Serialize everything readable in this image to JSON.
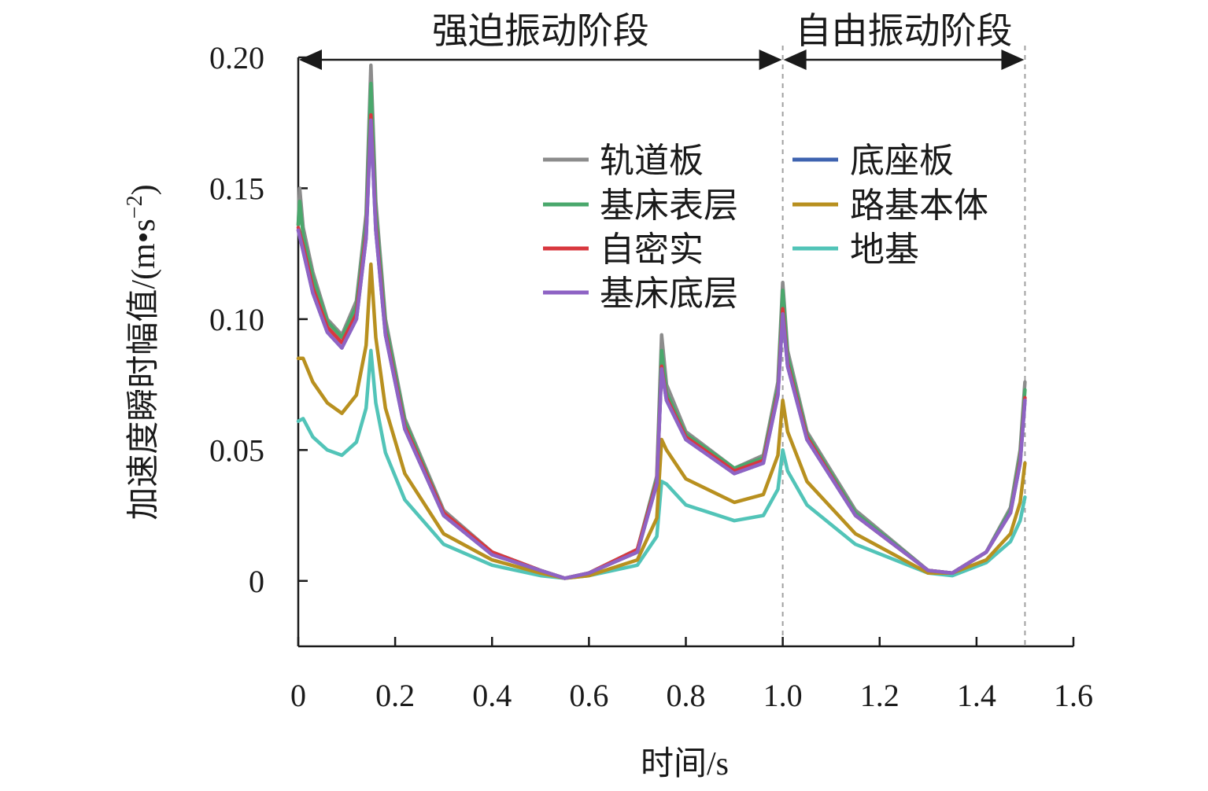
{
  "chart_data": {
    "type": "line",
    "title": "",
    "xlabel": "时间/s",
    "ylabel_main": "加速度瞬时幅值/(m",
    "ylabel_dot": "•",
    "ylabel_s": "s",
    "ylabel_exp": "−2",
    "ylabel_close": ")",
    "xlim": [
      0,
      1.6
    ],
    "ylim": [
      -0.025,
      0.2
    ],
    "x_ticks": [
      {
        "value": 0,
        "label": "0"
      },
      {
        "value": 0.2,
        "label": "0.2"
      },
      {
        "value": 0.4,
        "label": "0.4"
      },
      {
        "value": 0.6,
        "label": "0.6"
      },
      {
        "value": 0.8,
        "label": "0.8"
      },
      {
        "value": 1.0,
        "label": "1.0"
      },
      {
        "value": 1.2,
        "label": "1.2"
      },
      {
        "value": 1.4,
        "label": "1.4"
      },
      {
        "value": 1.6,
        "label": "1.6"
      }
    ],
    "y_ticks": [
      {
        "value": 0,
        "label": "0"
      },
      {
        "value": 0.05,
        "label": "0.05"
      },
      {
        "value": 0.1,
        "label": "0.10"
      },
      {
        "value": 0.15,
        "label": "0.15"
      },
      {
        "value": 0.2,
        "label": "0.20"
      }
    ],
    "grid": false,
    "legend_position": "upper-right, two columns",
    "phases": [
      {
        "label": "强迫振动阶段",
        "x_start": 0,
        "x_end": 1.0
      },
      {
        "label": "自由振动阶段",
        "x_start": 1.0,
        "x_end": 1.5
      }
    ],
    "dividers": [
      1.0,
      1.5
    ],
    "series": [
      {
        "name": "轨道板",
        "color": "#8c8c8c",
        "x": [
          0,
          0.003,
          0.01,
          0.03,
          0.06,
          0.09,
          0.12,
          0.14,
          0.15,
          0.16,
          0.18,
          0.22,
          0.3,
          0.4,
          0.5,
          0.55,
          0.6,
          0.7,
          0.74,
          0.75,
          0.76,
          0.8,
          0.9,
          0.96,
          0.99,
          1.0,
          1.01,
          1.05,
          1.15,
          1.3,
          1.35,
          1.42,
          1.47,
          1.49,
          1.5
        ],
        "y": [
          0.136,
          0.15,
          0.135,
          0.118,
          0.1,
          0.094,
          0.107,
          0.14,
          0.197,
          0.145,
          0.1,
          0.062,
          0.027,
          0.011,
          0.004,
          0.001,
          0.003,
          0.012,
          0.04,
          0.094,
          0.075,
          0.057,
          0.043,
          0.048,
          0.076,
          0.114,
          0.088,
          0.057,
          0.027,
          0.004,
          0.003,
          0.011,
          0.028,
          0.05,
          0.076
        ]
      },
      {
        "name": "基床表层",
        "color": "#4aa86c",
        "x": [
          0,
          0.003,
          0.01,
          0.03,
          0.06,
          0.09,
          0.12,
          0.14,
          0.15,
          0.16,
          0.18,
          0.22,
          0.3,
          0.4,
          0.5,
          0.55,
          0.6,
          0.7,
          0.74,
          0.75,
          0.76,
          0.8,
          0.9,
          0.96,
          0.99,
          1.0,
          1.01,
          1.05,
          1.15,
          1.3,
          1.35,
          1.42,
          1.47,
          1.49,
          1.5
        ],
        "y": [
          0.136,
          0.145,
          0.132,
          0.116,
          0.099,
          0.093,
          0.105,
          0.137,
          0.19,
          0.141,
          0.098,
          0.061,
          0.026,
          0.011,
          0.004,
          0.001,
          0.003,
          0.012,
          0.039,
          0.088,
          0.072,
          0.056,
          0.043,
          0.047,
          0.074,
          0.111,
          0.086,
          0.056,
          0.026,
          0.004,
          0.003,
          0.011,
          0.027,
          0.048,
          0.073
        ]
      },
      {
        "name": "自密实",
        "color": "#d8383f",
        "x": [
          0,
          0.01,
          0.03,
          0.06,
          0.09,
          0.12,
          0.14,
          0.15,
          0.16,
          0.18,
          0.22,
          0.3,
          0.4,
          0.5,
          0.55,
          0.6,
          0.7,
          0.74,
          0.75,
          0.76,
          0.8,
          0.9,
          0.96,
          0.99,
          1.0,
          1.01,
          1.05,
          1.15,
          1.3,
          1.35,
          1.42,
          1.47,
          1.49,
          1.5
        ],
        "y": [
          0.135,
          0.128,
          0.112,
          0.097,
          0.091,
          0.102,
          0.133,
          0.178,
          0.136,
          0.095,
          0.059,
          0.026,
          0.011,
          0.004,
          0.001,
          0.003,
          0.012,
          0.038,
          0.082,
          0.07,
          0.055,
          0.042,
          0.046,
          0.072,
          0.104,
          0.083,
          0.055,
          0.025,
          0.004,
          0.003,
          0.011,
          0.026,
          0.046,
          0.07
        ]
      },
      {
        "name": "基床底层",
        "color": "#8e63c4",
        "x": [
          0,
          0.01,
          0.03,
          0.06,
          0.09,
          0.12,
          0.14,
          0.15,
          0.16,
          0.18,
          0.22,
          0.3,
          0.4,
          0.5,
          0.55,
          0.6,
          0.7,
          0.74,
          0.75,
          0.76,
          0.8,
          0.9,
          0.96,
          0.99,
          1.0,
          1.01,
          1.05,
          1.15,
          1.3,
          1.35,
          1.42,
          1.47,
          1.49,
          1.5
        ],
        "y": [
          0.134,
          0.126,
          0.11,
          0.095,
          0.089,
          0.1,
          0.131,
          0.176,
          0.134,
          0.094,
          0.058,
          0.025,
          0.01,
          0.004,
          0.001,
          0.003,
          0.011,
          0.037,
          0.081,
          0.069,
          0.054,
          0.041,
          0.045,
          0.071,
          0.102,
          0.082,
          0.054,
          0.025,
          0.004,
          0.003,
          0.011,
          0.026,
          0.045,
          0.069
        ]
      },
      {
        "name": "底座板",
        "color": "#3e63b0",
        "x": [
          0,
          0.01,
          0.03,
          0.06,
          0.09,
          0.12,
          0.14,
          0.15,
          0.16,
          0.18,
          0.22,
          0.3,
          0.4,
          0.5,
          0.55,
          0.6,
          0.7,
          0.74,
          0.75,
          0.76,
          0.8,
          0.9,
          0.96,
          0.99,
          1.0,
          1.01,
          1.05,
          1.15,
          1.3,
          1.35,
          1.42,
          1.47,
          1.49,
          1.5
        ],
        "y": [
          0.134,
          0.126,
          0.11,
          0.095,
          0.089,
          0.1,
          0.131,
          0.176,
          0.134,
          0.094,
          0.058,
          0.025,
          0.01,
          0.004,
          0.001,
          0.003,
          0.011,
          0.037,
          0.081,
          0.069,
          0.054,
          0.041,
          0.045,
          0.071,
          0.102,
          0.082,
          0.054,
          0.025,
          0.004,
          0.003,
          0.011,
          0.026,
          0.045,
          0.069
        ]
      },
      {
        "name": "路基本体",
        "color": "#b8901f",
        "x": [
          0,
          0.01,
          0.03,
          0.06,
          0.09,
          0.12,
          0.14,
          0.15,
          0.16,
          0.18,
          0.22,
          0.3,
          0.4,
          0.5,
          0.55,
          0.6,
          0.7,
          0.74,
          0.75,
          0.76,
          0.8,
          0.9,
          0.96,
          0.99,
          1.0,
          1.01,
          1.05,
          1.15,
          1.3,
          1.35,
          1.42,
          1.47,
          1.49,
          1.5
        ],
        "y": [
          0.085,
          0.085,
          0.076,
          0.068,
          0.064,
          0.071,
          0.09,
          0.121,
          0.093,
          0.066,
          0.041,
          0.018,
          0.008,
          0.003,
          0.001,
          0.002,
          0.008,
          0.024,
          0.054,
          0.05,
          0.039,
          0.03,
          0.033,
          0.048,
          0.069,
          0.057,
          0.038,
          0.018,
          0.003,
          0.003,
          0.008,
          0.018,
          0.03,
          0.045
        ]
      },
      {
        "name": "地基",
        "color": "#52c4b8",
        "x": [
          0,
          0.01,
          0.03,
          0.06,
          0.09,
          0.12,
          0.14,
          0.15,
          0.16,
          0.18,
          0.22,
          0.3,
          0.4,
          0.5,
          0.55,
          0.6,
          0.7,
          0.74,
          0.75,
          0.76,
          0.8,
          0.9,
          0.96,
          0.99,
          1.0,
          1.01,
          1.05,
          1.15,
          1.3,
          1.35,
          1.42,
          1.47,
          1.49,
          1.5
        ],
        "y": [
          0.061,
          0.062,
          0.055,
          0.05,
          0.048,
          0.053,
          0.066,
          0.088,
          0.068,
          0.049,
          0.031,
          0.014,
          0.006,
          0.002,
          0.001,
          0.002,
          0.006,
          0.017,
          0.038,
          0.037,
          0.029,
          0.023,
          0.025,
          0.035,
          0.05,
          0.042,
          0.029,
          0.014,
          0.003,
          0.002,
          0.007,
          0.015,
          0.023,
          0.032
        ]
      }
    ],
    "legend_order": [
      "轨道板",
      "底座板",
      "基床表层",
      "路基本体",
      "自密实",
      "地基",
      "基床底层"
    ]
  }
}
